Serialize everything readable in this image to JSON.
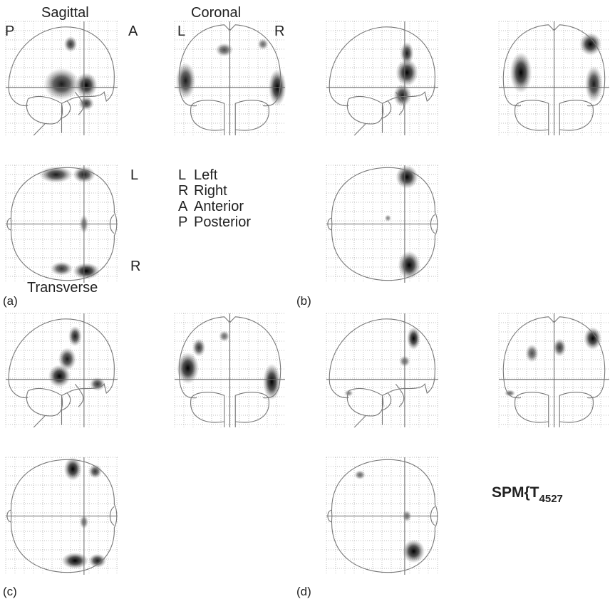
{
  "view_titles": {
    "sagittal": "Sagittal",
    "coronal": "Coronal",
    "transverse": "Transverse"
  },
  "orientation": {
    "sagittal_left": "P",
    "sagittal_right": "A",
    "coronal_left": "L",
    "coronal_right": "R",
    "transverse_top": "L",
    "transverse_bottom": "R"
  },
  "legend": [
    {
      "key": "L",
      "text": "Left"
    },
    {
      "key": "R",
      "text": "Right"
    },
    {
      "key": "A",
      "text": "Anterior"
    },
    {
      "key": "P",
      "text": "Posterior"
    }
  ],
  "panel_labels": [
    "(a)",
    "(b)",
    "(c)",
    "(d)"
  ],
  "statistic_label": {
    "text": "SPM{T",
    "subscript": "4527"
  }
}
